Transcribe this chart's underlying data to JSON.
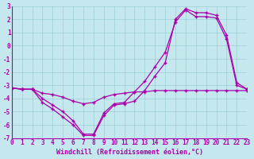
{
  "bg_color": "#c5e8ef",
  "grid_color": "#9ecdd8",
  "line_color": "#aa00aa",
  "xlabel": "Windchill (Refroidissement éolien,°C)",
  "xlim": [
    0,
    23
  ],
  "ylim": [
    -7,
    3
  ],
  "xticks": [
    0,
    1,
    2,
    3,
    4,
    5,
    6,
    7,
    8,
    9,
    10,
    11,
    12,
    13,
    14,
    15,
    16,
    17,
    18,
    19,
    20,
    21,
    22,
    23
  ],
  "yticks": [
    -7,
    -6,
    -5,
    -4,
    -3,
    -2,
    -1,
    0,
    1,
    2,
    3
  ],
  "line1_x": [
    0,
    1,
    2,
    3,
    4,
    5,
    6,
    7,
    8,
    9,
    10,
    11,
    12,
    13,
    14,
    15,
    16,
    17,
    18,
    19,
    20,
    21,
    22,
    23
  ],
  "line1_y": [
    -3.2,
    -3.3,
    -3.3,
    -3.6,
    -3.7,
    -3.9,
    -4.2,
    -4.4,
    -4.3,
    -3.9,
    -3.7,
    -3.6,
    -3.5,
    -3.5,
    -3.4,
    -3.4,
    -3.4,
    -3.4,
    -3.4,
    -3.4,
    -3.4,
    -3.4,
    -3.4,
    -3.4
  ],
  "line2_x": [
    0,
    1,
    2,
    3,
    4,
    5,
    6,
    7,
    8,
    9,
    10,
    11,
    12,
    13,
    14,
    15,
    16,
    17,
    18,
    19,
    20,
    21,
    22,
    23
  ],
  "line2_y": [
    -3.2,
    -3.3,
    -3.3,
    -4.3,
    -4.8,
    -5.4,
    -6.0,
    -6.8,
    -6.8,
    -5.3,
    -4.5,
    -4.4,
    -4.2,
    -3.4,
    -2.3,
    -1.3,
    2.0,
    2.8,
    2.5,
    2.5,
    2.3,
    0.8,
    -2.8,
    -3.3
  ],
  "line3_x": [
    0,
    1,
    2,
    3,
    4,
    5,
    6,
    7,
    8,
    9,
    10,
    11,
    12,
    13,
    14,
    15,
    16,
    17,
    18,
    19,
    20,
    21,
    22,
    23
  ],
  "line3_y": [
    -3.2,
    -3.3,
    -3.3,
    -4.0,
    -4.5,
    -5.0,
    -5.7,
    -6.7,
    -6.7,
    -5.1,
    -4.4,
    -4.3,
    -3.5,
    -2.7,
    -1.6,
    -0.5,
    1.8,
    2.7,
    2.2,
    2.2,
    2.1,
    0.5,
    -3.0,
    -3.3
  ],
  "figsize": [
    3.2,
    2.0
  ],
  "dpi": 100,
  "xlabel_fontsize": 6,
  "tick_fontsize": 5.5
}
